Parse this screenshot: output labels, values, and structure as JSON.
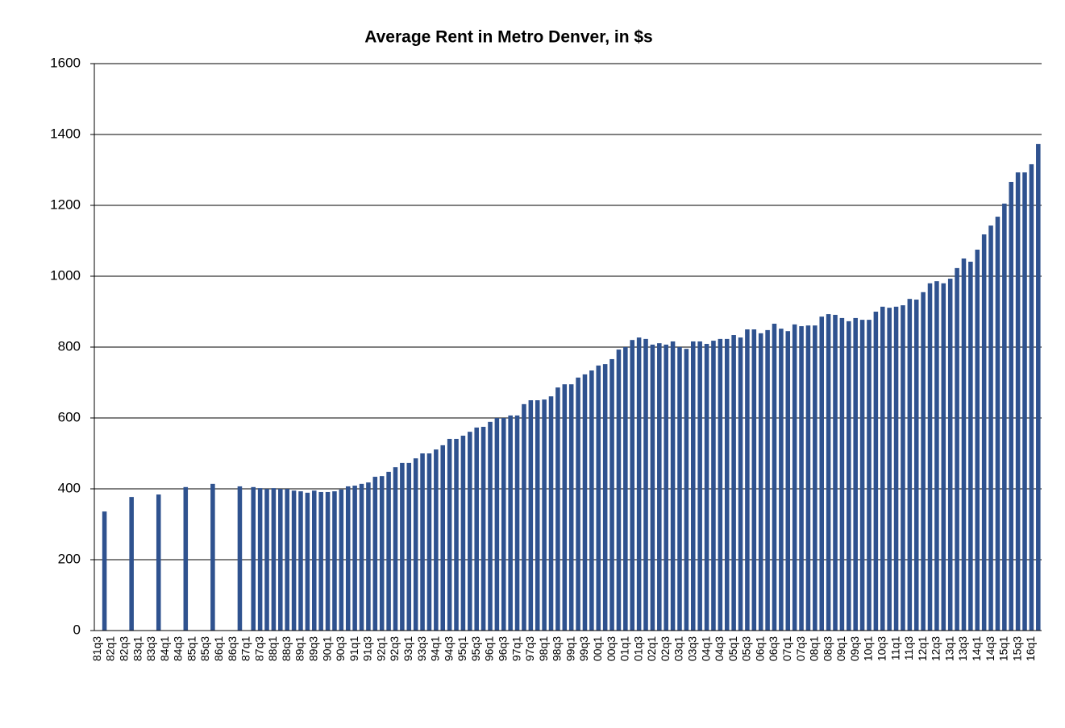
{
  "chart_data": {
    "type": "bar",
    "title": "Average Rent in Metro Denver, in $s",
    "categories": [
      "81q3",
      null,
      "82q1",
      null,
      "82q3",
      null,
      "83q1",
      null,
      "83q3",
      null,
      "84q1",
      null,
      "84q3",
      null,
      "85q1",
      null,
      "85q3",
      null,
      "86q1",
      null,
      "86q3",
      null,
      "87q1",
      null,
      "87q3",
      null,
      "88q1",
      null,
      "88q3",
      null,
      "89q1",
      null,
      "89q3",
      null,
      "90q1",
      null,
      "90q3",
      null,
      "91q1",
      null,
      "91q3",
      null,
      "92q1",
      null,
      "92q3",
      null,
      "93q1",
      null,
      "93q3",
      null,
      "94q1",
      null,
      "94q3",
      null,
      "95q1",
      null,
      "95q3",
      null,
      "96q1",
      null,
      "96q3",
      null,
      "97q1",
      null,
      "97q3",
      null,
      "98q1",
      null,
      "98q3",
      null,
      "99q1",
      null,
      "99q3",
      null,
      "00q1",
      null,
      "00q3",
      null,
      "01q1",
      null,
      "01q3",
      null,
      "02q1",
      null,
      "02q3",
      null,
      "03q1",
      null,
      "03q3",
      null,
      "04q1",
      null,
      "04q3",
      null,
      "05q1",
      null,
      "05q3",
      null,
      "06q1",
      null,
      "06q3",
      null,
      "07q1",
      null,
      "07q3",
      null,
      "08q1",
      null,
      "08q3",
      null,
      "09q1",
      null,
      "09q3",
      null,
      "10q1",
      null,
      "10q3",
      null,
      "11q1",
      null,
      "11q3",
      null,
      "12q1",
      null,
      "12q3",
      null,
      "13q1",
      null,
      "13q3",
      null,
      "14q1",
      null,
      "14q3",
      null,
      "15q1",
      null,
      "15q3",
      null,
      "16q1",
      null
    ],
    "values": [
      null,
      336,
      null,
      null,
      null,
      377,
      null,
      null,
      null,
      384,
      null,
      null,
      null,
      405,
      null,
      null,
      null,
      414,
      null,
      null,
      null,
      407,
      null,
      405,
      402,
      400,
      402,
      400,
      400,
      395,
      393,
      389,
      395,
      391,
      391,
      393,
      398,
      407,
      409,
      414,
      418,
      434,
      436,
      448,
      461,
      473,
      473,
      486,
      500,
      500,
      511,
      523,
      541,
      541,
      550,
      561,
      573,
      575,
      589,
      600,
      600,
      607,
      607,
      639,
      650,
      650,
      652,
      661,
      686,
      695,
      695,
      714,
      723,
      734,
      748,
      752,
      766,
      793,
      800,
      820,
      827,
      823,
      807,
      811,
      807,
      816,
      800,
      795,
      816,
      816,
      809,
      818,
      823,
      823,
      834,
      827,
      850,
      850,
      839,
      848,
      866,
      852,
      845,
      864,
      859,
      861,
      861,
      886,
      893,
      891,
      882,
      873,
      882,
      877,
      877,
      900,
      914,
      911,
      914,
      918,
      936,
      934,
      955,
      980,
      986,
      980,
      993,
      1023,
      1050,
      1041,
      1075,
      1118,
      1143,
      1168,
      1205,
      1266,
      1293,
      1293,
      1316,
      1373
    ],
    "color": "#2f528f",
    "ylim": [
      0,
      1600
    ],
    "yticks": [
      0,
      200,
      400,
      600,
      800,
      1000,
      1200,
      1400,
      1600
    ],
    "grid": true
  }
}
